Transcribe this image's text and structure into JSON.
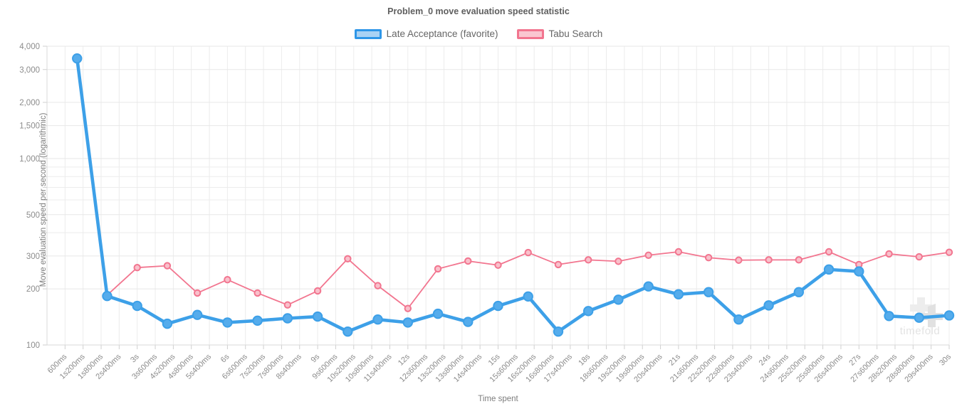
{
  "title": "Problem_0 move evaluation speed statistic",
  "watermark": "timefold",
  "chart_data": {
    "type": "line",
    "title": "Problem_0 move evaluation speed statistic",
    "xlabel": "Time spent",
    "ylabel": "Move evaluation speed per second (logarithmic)",
    "y_scale": "log",
    "ylim": [
      100,
      4000
    ],
    "x_max_ms": 30000,
    "grid": true,
    "legend_position": "top",
    "x_seconds": [
      1,
      2,
      3,
      4,
      5,
      6,
      7,
      8,
      9,
      10,
      11,
      12,
      13,
      14,
      15,
      16,
      17,
      18,
      19,
      20,
      21,
      22,
      23,
      24,
      25,
      26,
      27,
      28,
      29,
      30
    ],
    "series": [
      {
        "name": "Tabu Search",
        "color": "#f2758f",
        "dot_fill": "#f9c0cb",
        "line_width": 1.8,
        "dot_radius": 4.2,
        "values": [
          3500,
          185,
          260,
          266,
          190,
          224,
          190,
          164,
          195,
          290,
          208,
          157,
          256,
          282,
          268,
          313,
          270,
          286,
          281,
          303,
          316,
          294,
          285,
          286,
          286,
          316,
          270,
          308,
          297,
          314
        ]
      },
      {
        "name": "Late Acceptance (favorite)",
        "color": "#3da0e8",
        "dot_fill": "#55acec",
        "line_width": 4.6,
        "dot_radius": 6.2,
        "values": [
          3440,
          183,
          162,
          130,
          145,
          132,
          135,
          139,
          142,
          118,
          137,
          132,
          147,
          133,
          162,
          182,
          118,
          152,
          175,
          206,
          187,
          192,
          137,
          163,
          192,
          254,
          248,
          143,
          140,
          144
        ]
      }
    ],
    "y_tick_labels": [
      {
        "value": 4000,
        "label": "4,000"
      },
      {
        "value": 3000,
        "label": "3,000"
      },
      {
        "value": 2000,
        "label": "2,000"
      },
      {
        "value": 1500,
        "label": "1,500"
      },
      {
        "value": 1000,
        "label": "1,000"
      },
      {
        "value": 500,
        "label": "500"
      },
      {
        "value": 300,
        "label": "300"
      },
      {
        "value": 200,
        "label": "200"
      },
      {
        "value": 100,
        "label": "100"
      }
    ],
    "y_minor_gridlines": [
      400,
      600,
      700,
      800,
      900
    ],
    "x_tick_labels": [
      {
        "ms": 600,
        "label": "600ms"
      },
      {
        "ms": 1200,
        "label": "1s200ms"
      },
      {
        "ms": 1800,
        "label": "1s800ms"
      },
      {
        "ms": 2400,
        "label": "2s400ms"
      },
      {
        "ms": 3000,
        "label": "3s"
      },
      {
        "ms": 3600,
        "label": "3s600ms"
      },
      {
        "ms": 4200,
        "label": "4s200ms"
      },
      {
        "ms": 4800,
        "label": "4s800ms"
      },
      {
        "ms": 5400,
        "label": "5s400ms"
      },
      {
        "ms": 6000,
        "label": "6s"
      },
      {
        "ms": 6600,
        "label": "6s600ms"
      },
      {
        "ms": 7200,
        "label": "7s200ms"
      },
      {
        "ms": 7800,
        "label": "7s800ms"
      },
      {
        "ms": 8400,
        "label": "8s400ms"
      },
      {
        "ms": 9000,
        "label": "9s"
      },
      {
        "ms": 9600,
        "label": "9s600ms"
      },
      {
        "ms": 10200,
        "label": "10s200ms"
      },
      {
        "ms": 10800,
        "label": "10s800ms"
      },
      {
        "ms": 11400,
        "label": "11s400ms"
      },
      {
        "ms": 12000,
        "label": "12s"
      },
      {
        "ms": 12600,
        "label": "12s600ms"
      },
      {
        "ms": 13200,
        "label": "13s200ms"
      },
      {
        "ms": 13800,
        "label": "13s800ms"
      },
      {
        "ms": 14400,
        "label": "14s400ms"
      },
      {
        "ms": 15000,
        "label": "15s"
      },
      {
        "ms": 15600,
        "label": "15s600ms"
      },
      {
        "ms": 16200,
        "label": "16s200ms"
      },
      {
        "ms": 16800,
        "label": "16s800ms"
      },
      {
        "ms": 17400,
        "label": "17s400ms"
      },
      {
        "ms": 18000,
        "label": "18s"
      },
      {
        "ms": 18600,
        "label": "18s600ms"
      },
      {
        "ms": 19200,
        "label": "19s200ms"
      },
      {
        "ms": 19800,
        "label": "19s800ms"
      },
      {
        "ms": 20400,
        "label": "20s400ms"
      },
      {
        "ms": 21000,
        "label": "21s"
      },
      {
        "ms": 21600,
        "label": "21s600ms"
      },
      {
        "ms": 22200,
        "label": "22s200ms"
      },
      {
        "ms": 22800,
        "label": "22s800ms"
      },
      {
        "ms": 23400,
        "label": "23s400ms"
      },
      {
        "ms": 24000,
        "label": "24s"
      },
      {
        "ms": 24600,
        "label": "24s600ms"
      },
      {
        "ms": 25200,
        "label": "25s200ms"
      },
      {
        "ms": 25800,
        "label": "25s800ms"
      },
      {
        "ms": 26400,
        "label": "26s400ms"
      },
      {
        "ms": 27000,
        "label": "27s"
      },
      {
        "ms": 27600,
        "label": "27s600ms"
      },
      {
        "ms": 28200,
        "label": "28s200ms"
      },
      {
        "ms": 28800,
        "label": "28s800ms"
      },
      {
        "ms": 29400,
        "label": "29s400ms"
      },
      {
        "ms": 30000,
        "label": "30s"
      }
    ]
  }
}
